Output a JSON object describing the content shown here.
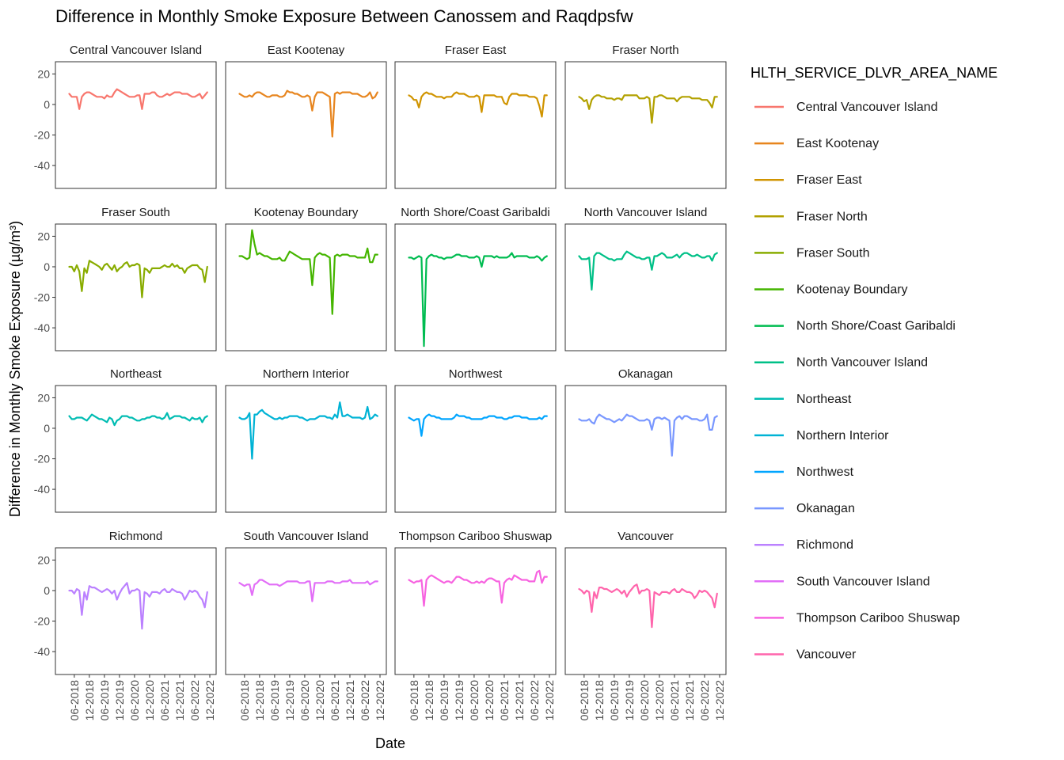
{
  "chart_data": {
    "type": "line",
    "title": "Difference in Monthly Smoke Exposure Between Canossem and Raqdpsfw",
    "xlabel": "Date",
    "ylabel": "Difference in Monthly Smoke Exposure (µg/m³)",
    "legend_title": "HLTH_SERVICE_DLVR_AREA_NAME",
    "legend_position": "right",
    "grid": false,
    "ylim": [
      -55,
      28
    ],
    "yticks": [
      20,
      0,
      -20,
      -40
    ],
    "ytick_labels": [
      "20",
      "0",
      "-20",
      "-40"
    ],
    "xlim": [
      "2018-01",
      "2022-12"
    ],
    "xticks": [
      "06-2018",
      "12-2018",
      "06-2019",
      "12-2019",
      "06-2020",
      "12-2020",
      "06-2021",
      "12-2021",
      "06-2022",
      "12-2022"
    ],
    "x": [
      "2018-04",
      "2018-05",
      "2018-06",
      "2018-07",
      "2018-08",
      "2018-09",
      "2018-10",
      "2018-11",
      "2018-12",
      "2019-01",
      "2019-02",
      "2019-03",
      "2019-04",
      "2019-05",
      "2019-06",
      "2019-07",
      "2019-08",
      "2019-09",
      "2019-10",
      "2019-11",
      "2019-12",
      "2020-01",
      "2020-02",
      "2020-03",
      "2020-04",
      "2020-05",
      "2020-06",
      "2020-07",
      "2020-08",
      "2020-09",
      "2020-10",
      "2020-11",
      "2020-12",
      "2021-01",
      "2021-02",
      "2021-03",
      "2021-04",
      "2021-05",
      "2021-06",
      "2021-07",
      "2021-08",
      "2021-09",
      "2021-10",
      "2021-11",
      "2021-12",
      "2022-01",
      "2022-02",
      "2022-03",
      "2022-04",
      "2022-05",
      "2022-06",
      "2022-07",
      "2022-08",
      "2022-09",
      "2022-10",
      "2022-11"
    ],
    "series": [
      {
        "name": "Central Vancouver Island",
        "color": "#F8766D",
        "values": [
          7,
          5,
          5,
          5,
          -3,
          5,
          7,
          8,
          8,
          7,
          6,
          5,
          5,
          5,
          4,
          6,
          5,
          5,
          8,
          10,
          9,
          8,
          7,
          6,
          5,
          5,
          5,
          6,
          6,
          -3,
          7,
          7,
          7,
          8,
          8,
          6,
          5,
          5,
          6,
          7,
          6,
          7,
          8,
          8,
          8,
          7,
          7,
          7,
          6,
          5,
          5,
          6,
          7,
          4,
          6,
          8
        ]
      },
      {
        "name": "East Kootenay",
        "color": "#E7851E",
        "values": [
          7,
          6,
          5,
          5,
          6,
          5,
          7,
          8,
          8,
          7,
          6,
          5,
          5,
          6,
          6,
          6,
          5,
          5,
          6,
          9,
          8,
          8,
          7,
          7,
          6,
          5,
          5,
          6,
          5,
          -4,
          5,
          8,
          8,
          8,
          7,
          6,
          5,
          -21,
          7,
          8,
          7,
          8,
          8,
          8,
          8,
          7,
          7,
          7,
          6,
          5,
          5,
          6,
          8,
          4,
          5,
          8
        ]
      },
      {
        "name": "Fraser East",
        "color": "#D09400",
        "values": [
          6,
          5,
          3,
          3,
          -2,
          5,
          7,
          8,
          7,
          7,
          6,
          5,
          5,
          5,
          4,
          5,
          5,
          5,
          7,
          8,
          7,
          7,
          7,
          6,
          5,
          5,
          5,
          6,
          5,
          -5,
          6,
          6,
          6,
          6,
          6,
          5,
          5,
          5,
          1,
          0,
          5,
          7,
          7,
          7,
          6,
          6,
          6,
          6,
          5,
          5,
          5,
          4,
          -1,
          -8,
          6,
          6
        ]
      },
      {
        "name": "Fraser North",
        "color": "#B2A100",
        "values": [
          5,
          4,
          2,
          3,
          -3,
          3,
          5,
          6,
          6,
          5,
          5,
          4,
          4,
          4,
          3,
          4,
          4,
          3,
          6,
          6,
          6,
          6,
          6,
          6,
          4,
          4,
          4,
          5,
          4,
          -12,
          5,
          5,
          6,
          6,
          5,
          4,
          4,
          4,
          4,
          2,
          4,
          5,
          5,
          5,
          5,
          4,
          4,
          4,
          4,
          3,
          3,
          3,
          1,
          -2,
          5,
          5
        ]
      },
      {
        "name": "Fraser South",
        "color": "#89AC00",
        "values": [
          0,
          0,
          -3,
          1,
          -3,
          -16,
          -1,
          -4,
          4,
          3,
          2,
          1,
          0,
          -2,
          1,
          2,
          0,
          -2,
          1,
          -3,
          -1,
          0,
          2,
          3,
          0,
          1,
          1,
          2,
          1,
          -20,
          -1,
          -2,
          -4,
          -1,
          -1,
          -1,
          -1,
          0,
          1,
          0,
          0,
          2,
          0,
          1,
          -1,
          -1,
          -4,
          -1,
          0,
          1,
          1,
          1,
          -1,
          -2,
          -10,
          0
        ]
      },
      {
        "name": "Kootenay Boundary",
        "color": "#45B500",
        "values": [
          7,
          7,
          6,
          5,
          6,
          24,
          15,
          8,
          9,
          8,
          7,
          7,
          6,
          5,
          5,
          5,
          6,
          4,
          4,
          7,
          10,
          9,
          8,
          7,
          6,
          5,
          5,
          5,
          5,
          -12,
          6,
          8,
          9,
          8,
          8,
          7,
          6,
          -31,
          7,
          8,
          7,
          8,
          8,
          8,
          7,
          7,
          7,
          6,
          6,
          6,
          6,
          12,
          3,
          3,
          8,
          8
        ]
      },
      {
        "name": "North Shore/Coast Garibaldi",
        "color": "#00BC51",
        "values": [
          6,
          6,
          5,
          6,
          7,
          6,
          -52,
          5,
          7,
          8,
          7,
          7,
          6,
          6,
          5,
          6,
          6,
          6,
          7,
          8,
          8,
          7,
          7,
          7,
          6,
          6,
          6,
          7,
          6,
          0,
          7,
          7,
          7,
          7,
          6,
          7,
          6,
          6,
          6,
          6,
          7,
          9,
          6,
          7,
          7,
          7,
          7,
          7,
          6,
          6,
          6,
          7,
          6,
          4,
          6,
          7
        ]
      },
      {
        "name": "North Vancouver Island",
        "color": "#00C087",
        "values": [
          7,
          5,
          5,
          5,
          6,
          -15,
          7,
          9,
          9,
          8,
          7,
          6,
          5,
          5,
          4,
          5,
          5,
          5,
          8,
          10,
          9,
          8,
          7,
          6,
          6,
          5,
          5,
          6,
          6,
          -2,
          7,
          7,
          8,
          9,
          8,
          6,
          6,
          6,
          7,
          8,
          6,
          8,
          9,
          9,
          8,
          7,
          7,
          8,
          7,
          6,
          6,
          7,
          7,
          4,
          8,
          9
        ]
      },
      {
        "name": "Northeast",
        "color": "#00BCB2",
        "values": [
          8,
          6,
          6,
          7,
          7,
          7,
          6,
          5,
          7,
          9,
          8,
          7,
          6,
          6,
          5,
          4,
          7,
          6,
          2,
          5,
          6,
          8,
          8,
          8,
          7,
          7,
          6,
          5,
          5,
          6,
          6,
          7,
          7,
          8,
          8,
          7,
          7,
          6,
          7,
          10,
          6,
          7,
          8,
          8,
          8,
          7,
          7,
          6,
          5,
          7,
          6,
          6,
          7,
          4,
          7,
          8
        ]
      },
      {
        "name": "Northern Interior",
        "color": "#00B3D5",
        "values": [
          7,
          6,
          6,
          7,
          10,
          -20,
          9,
          9,
          11,
          12,
          10,
          9,
          8,
          7,
          6,
          6,
          7,
          6,
          7,
          7,
          8,
          8,
          8,
          8,
          7,
          7,
          6,
          5,
          6,
          6,
          6,
          7,
          8,
          8,
          8,
          7,
          7,
          6,
          9,
          7,
          17,
          8,
          8,
          9,
          8,
          7,
          7,
          7,
          7,
          6,
          7,
          14,
          6,
          7,
          9,
          8
        ]
      },
      {
        "name": "Northwest",
        "color": "#00A5FF",
        "values": [
          7,
          6,
          5,
          6,
          6,
          -5,
          6,
          8,
          9,
          8,
          8,
          7,
          7,
          6,
          6,
          6,
          6,
          6,
          7,
          9,
          8,
          8,
          8,
          7,
          7,
          6,
          6,
          6,
          6,
          6,
          7,
          7,
          8,
          8,
          8,
          7,
          7,
          7,
          6,
          6,
          7,
          7,
          8,
          8,
          8,
          7,
          7,
          7,
          6,
          6,
          6,
          6,
          7,
          6,
          8,
          8
        ]
      },
      {
        "name": "Okanagan",
        "color": "#7997FF",
        "values": [
          6,
          5,
          5,
          5,
          6,
          4,
          3,
          7,
          9,
          8,
          7,
          6,
          6,
          5,
          4,
          5,
          6,
          5,
          7,
          9,
          8,
          8,
          7,
          6,
          5,
          5,
          5,
          6,
          5,
          -1,
          6,
          7,
          7,
          6,
          7,
          6,
          5,
          -18,
          5,
          7,
          8,
          6,
          8,
          8,
          7,
          6,
          6,
          6,
          5,
          5,
          6,
          9,
          -1,
          -1,
          7,
          8
        ]
      },
      {
        "name": "Richmond",
        "color": "#BB81FF",
        "values": [
          0,
          0,
          -2,
          1,
          0,
          -16,
          -1,
          -6,
          3,
          2,
          2,
          1,
          0,
          -1,
          0,
          1,
          0,
          -2,
          0,
          -6,
          -2,
          1,
          3,
          5,
          -2,
          0,
          0,
          1,
          0,
          -25,
          -1,
          -2,
          -4,
          -1,
          -1,
          -1,
          -2,
          0,
          1,
          -1,
          -1,
          1,
          0,
          -1,
          -1,
          -2,
          -6,
          -3,
          0,
          -1,
          0,
          -1,
          -4,
          -6,
          -11,
          -1
        ]
      },
      {
        "name": "South Vancouver Island",
        "color": "#E26EF7",
        "values": [
          5,
          4,
          3,
          4,
          4,
          -3,
          4,
          5,
          7,
          7,
          6,
          5,
          4,
          4,
          4,
          4,
          3,
          4,
          5,
          6,
          6,
          6,
          6,
          6,
          5,
          5,
          5,
          6,
          6,
          -7,
          5,
          5,
          5,
          5,
          5,
          6,
          6,
          6,
          5,
          5,
          5,
          6,
          6,
          6,
          7,
          5,
          5,
          5,
          5,
          5,
          5,
          6,
          4,
          5,
          6,
          6
        ]
      },
      {
        "name": "Thompson Cariboo Shuswap",
        "color": "#F763E0",
        "values": [
          7,
          6,
          5,
          6,
          6,
          7,
          -10,
          7,
          9,
          10,
          9,
          8,
          7,
          6,
          5,
          6,
          6,
          5,
          7,
          9,
          9,
          8,
          7,
          7,
          6,
          5,
          5,
          6,
          5,
          6,
          5,
          7,
          8,
          8,
          7,
          6,
          6,
          -8,
          5,
          7,
          8,
          7,
          10,
          9,
          8,
          7,
          7,
          7,
          6,
          6,
          6,
          12,
          13,
          5,
          9,
          9
        ]
      },
      {
        "name": "Vancouver",
        "color": "#FF65AC",
        "values": [
          1,
          0,
          -2,
          0,
          -1,
          -14,
          -1,
          -5,
          2,
          2,
          1,
          1,
          0,
          -1,
          0,
          1,
          0,
          -2,
          0,
          -4,
          -1,
          1,
          3,
          4,
          -2,
          0,
          0,
          1,
          0,
          -24,
          -1,
          -2,
          -3,
          -1,
          -1,
          -1,
          -2,
          0,
          1,
          -1,
          -1,
          1,
          0,
          -1,
          -1,
          -2,
          -5,
          -3,
          0,
          -1,
          0,
          -1,
          -3,
          -5,
          -11,
          -2
        ]
      }
    ]
  }
}
